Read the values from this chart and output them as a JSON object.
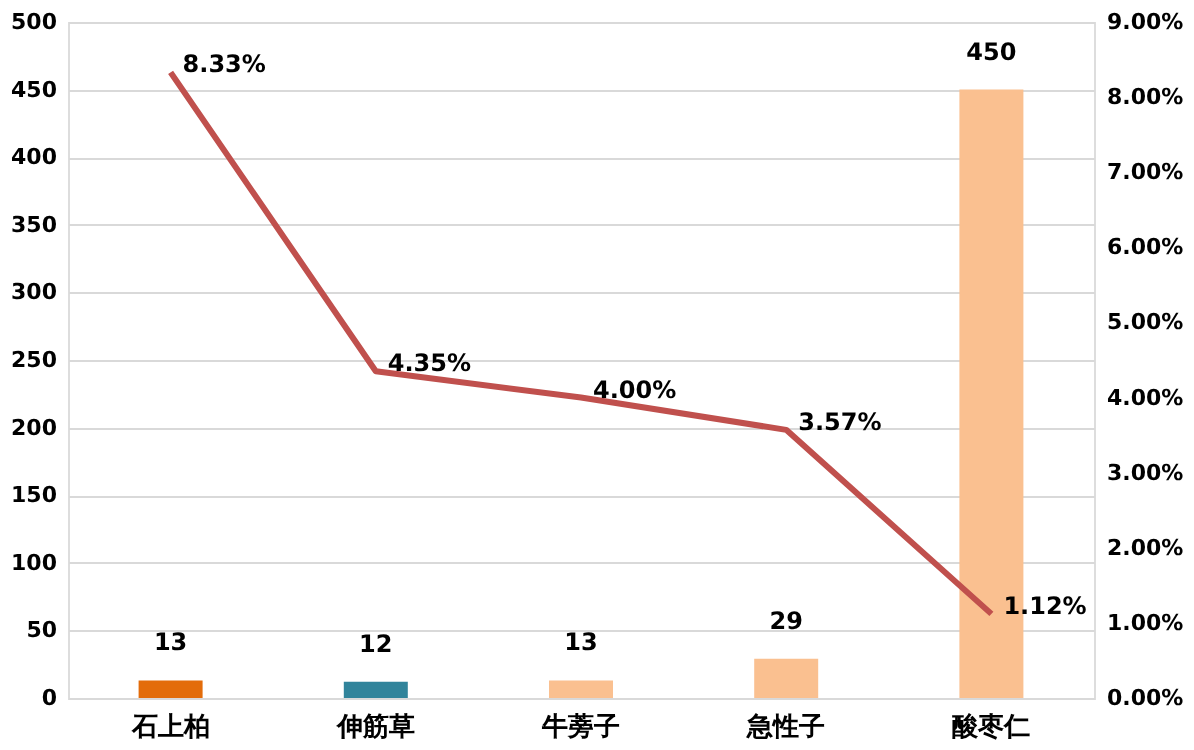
{
  "chart_data": {
    "type": "bar",
    "categories": [
      "石上柏",
      "伸筋草",
      "牛蒡子",
      "急性子",
      "酸枣仁"
    ],
    "series": [
      {
        "colors": [
          "#e36c0a",
          "#31849b",
          "#fac090",
          "#fac090",
          "#fac090"
        ],
        "values": [
          13,
          12,
          13,
          29,
          450
        ],
        "value_labels": [
          "13",
          "12",
          "13",
          "29",
          "450"
        ]
      },
      {
        "type": "line",
        "axis": "y2",
        "color": "#c0504d",
        "values": [
          8.33,
          4.35,
          4.0,
          3.57,
          1.12
        ],
        "value_labels": [
          "8.33%",
          "4.35%",
          "4.00%",
          "3.57%",
          "1.12%"
        ]
      }
    ],
    "ylim": [
      0,
      500
    ],
    "yticks": [
      0,
      50,
      100,
      150,
      200,
      250,
      300,
      350,
      400,
      450,
      500
    ],
    "y2lim": [
      0,
      9
    ],
    "y2ticks": [
      {
        "value": 0,
        "label": "0.00%"
      },
      {
        "value": 1,
        "label": "1.00%"
      },
      {
        "value": 2,
        "label": "2.00%"
      },
      {
        "value": 3,
        "label": "3.00%"
      },
      {
        "value": 4,
        "label": "4.00%"
      },
      {
        "value": 5,
        "label": "5.00%"
      },
      {
        "value": 6,
        "label": "6.00%"
      },
      {
        "value": 7,
        "label": "7.00%"
      },
      {
        "value": 8,
        "label": "8.00%"
      },
      {
        "value": 9,
        "label": "9.00%"
      }
    ],
    "grid": "y",
    "marker": "none",
    "line_style": "solid"
  }
}
